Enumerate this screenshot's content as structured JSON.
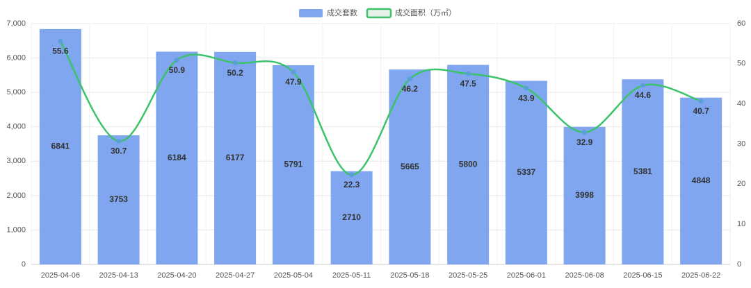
{
  "chart_data": {
    "type": "combo",
    "categories": [
      "2025-04-06",
      "2025-04-13",
      "2025-04-20",
      "2025-04-27",
      "2025-05-04",
      "2025-05-11",
      "2025-05-18",
      "2025-05-25",
      "2025-06-01",
      "2025-06-08",
      "2025-06-15",
      "2025-06-22"
    ],
    "series": [
      {
        "name": "成交套数",
        "type": "bar",
        "color": "#7fa6ee",
        "values": [
          6841,
          3753,
          6184,
          6177,
          5791,
          2710,
          5665,
          5800,
          5337,
          3998,
          5381,
          4848
        ]
      },
      {
        "name": "成交面积（万㎡）",
        "type": "line",
        "axis": "y2",
        "color": "#3cc36a",
        "marker_color": "#5b9fd8",
        "smooth": true,
        "values": [
          55.6,
          30.7,
          50.9,
          50.2,
          47.9,
          22.3,
          46.2,
          47.5,
          43.9,
          32.9,
          44.6,
          40.7
        ]
      }
    ],
    "ylim": [
      0,
      7000
    ],
    "yticks": [
      0,
      {
        "value": 1000,
        "label": "1,000"
      },
      {
        "value": 2000,
        "label": "2,000"
      },
      {
        "value": 3000,
        "label": "3,000"
      },
      {
        "value": 4000,
        "label": "4,000"
      },
      {
        "value": 5000,
        "label": "5,000"
      },
      {
        "value": 6000,
        "label": "6,000"
      },
      {
        "value": 7000,
        "label": "7,000"
      }
    ],
    "y2lim": [
      0,
      60
    ],
    "y2ticks": [
      0,
      10,
      20,
      30,
      40,
      50,
      60
    ],
    "grid": true,
    "legend": "top"
  }
}
